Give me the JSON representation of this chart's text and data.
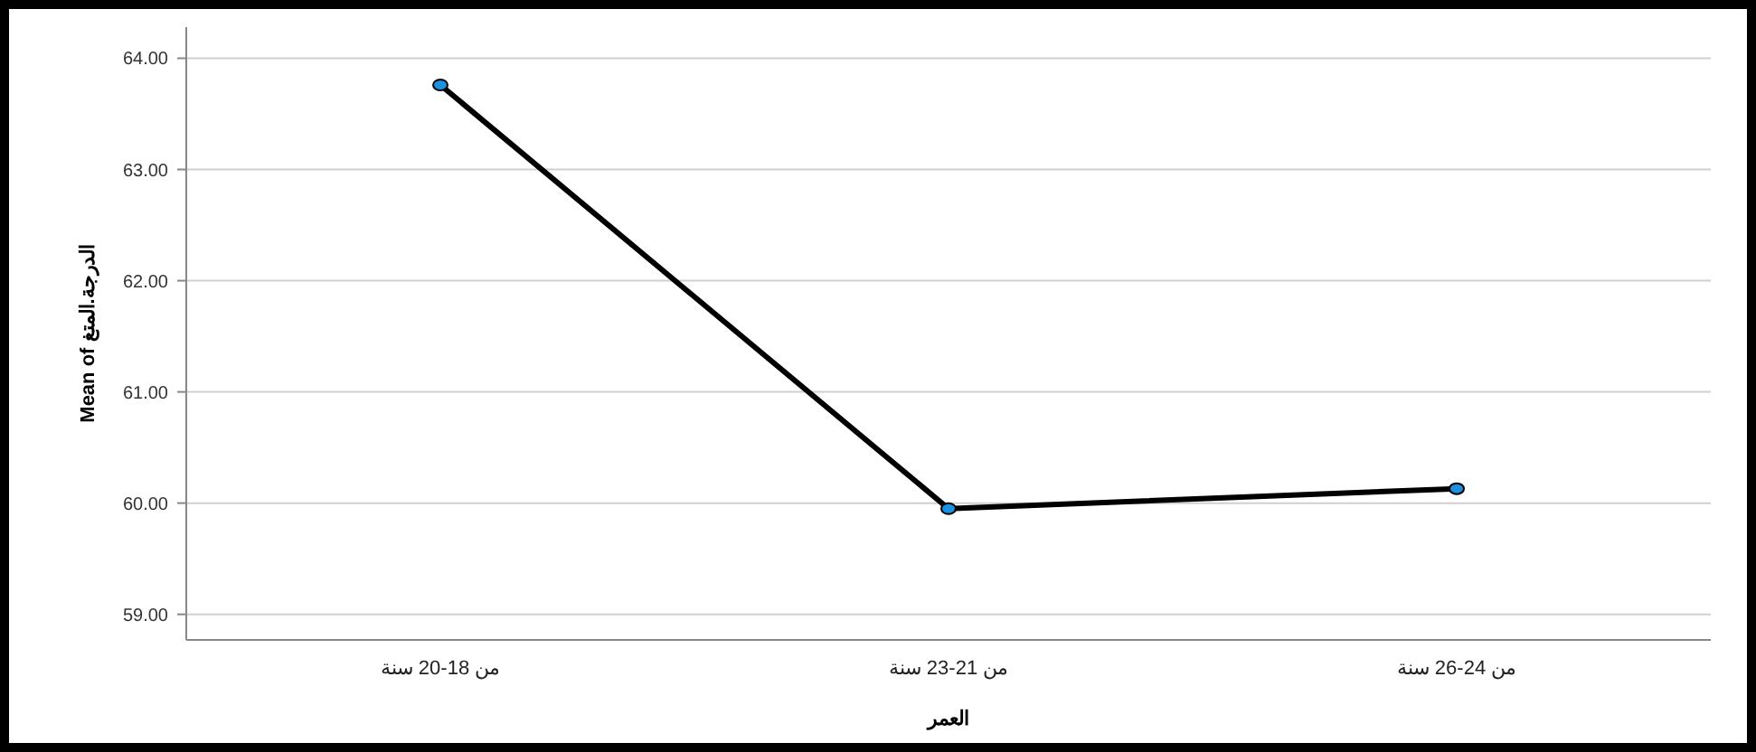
{
  "chart_data": {
    "type": "line",
    "xlabel": "العمر",
    "ylabel": "Mean of الدرجة.المتغ",
    "categories": [
      "من 18-20 سنة",
      "من 21-23 سنة",
      "من 24-26 سنة"
    ],
    "series": [
      {
        "color": "#000000",
        "values": [
          63.76,
          59.95,
          60.13
        ]
      }
    ],
    "ylim": [
      58.77,
      64.28
    ],
    "yticks": [
      {
        "value": 59,
        "label": "59.00"
      },
      {
        "value": 60,
        "label": "60.00"
      },
      {
        "value": 61,
        "label": "61.00"
      },
      {
        "value": 62,
        "label": "62.00"
      },
      {
        "value": 63,
        "label": "63.00"
      },
      {
        "value": 64,
        "label": "64.00"
      }
    ],
    "grid": "y",
    "marker": "circle",
    "line_style": "solid"
  }
}
